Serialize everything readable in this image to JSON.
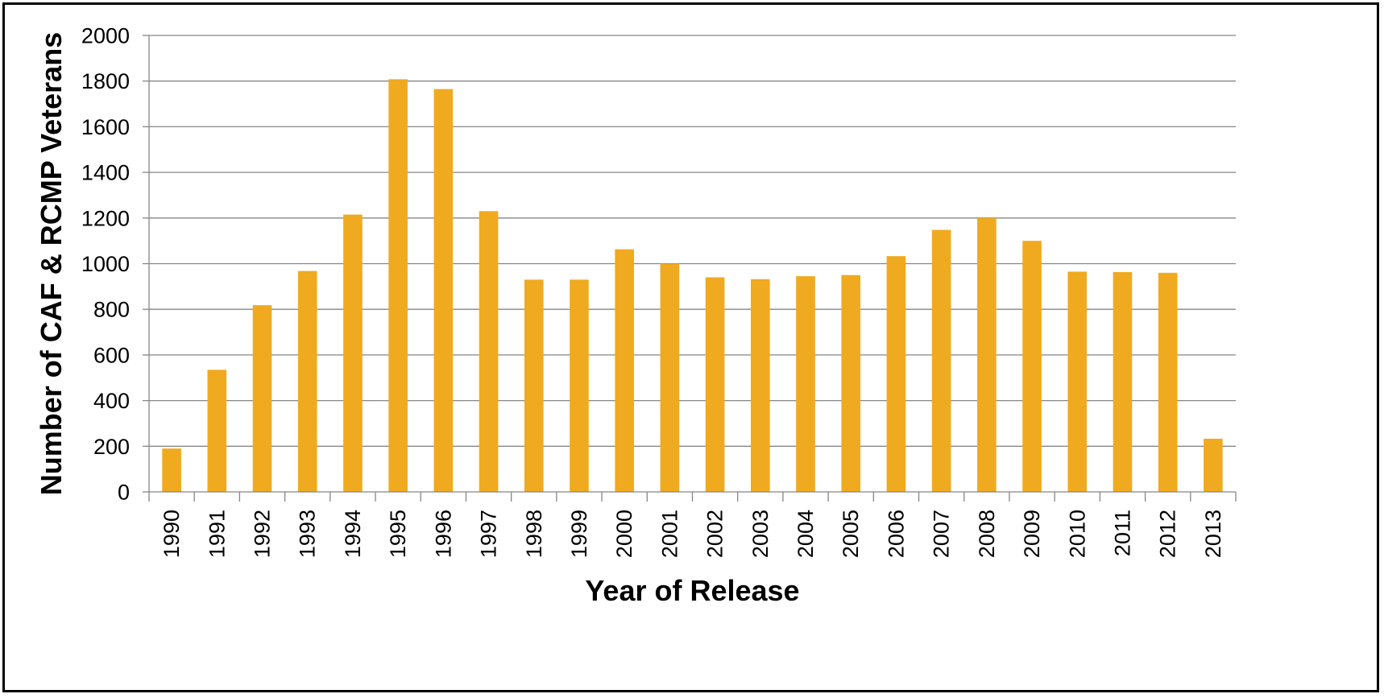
{
  "chart_data": {
    "type": "bar",
    "title": "",
    "xlabel": "Year of Release",
    "ylabel": "Number of CAF & RCMP Veterans",
    "categories": [
      "1990",
      "1991",
      "1992",
      "1993",
      "1994",
      "1995",
      "1996",
      "1997",
      "1998",
      "1999",
      "2000",
      "2001",
      "2002",
      "2003",
      "2004",
      "2005",
      "2006",
      "2007",
      "2008",
      "2009",
      "2010",
      "2011",
      "2012",
      "2013"
    ],
    "series": [
      {
        "values": [
          190,
          535,
          818,
          968,
          1215,
          1808,
          1765,
          1230,
          930,
          930,
          1063,
          1000,
          940,
          932,
          945,
          950,
          1033,
          1148,
          1200,
          1100,
          965,
          963,
          960,
          233
        ]
      }
    ],
    "ylim": [
      0,
      2000
    ],
    "yticks": [
      0,
      200,
      400,
      600,
      800,
      1000,
      1200,
      1400,
      1600,
      1800,
      2000
    ],
    "grid": true,
    "legend": "none",
    "colors": {
      "bar": "#F0AA1F",
      "grid": "#868686",
      "axis": "#868686",
      "text": "#000000"
    }
  }
}
